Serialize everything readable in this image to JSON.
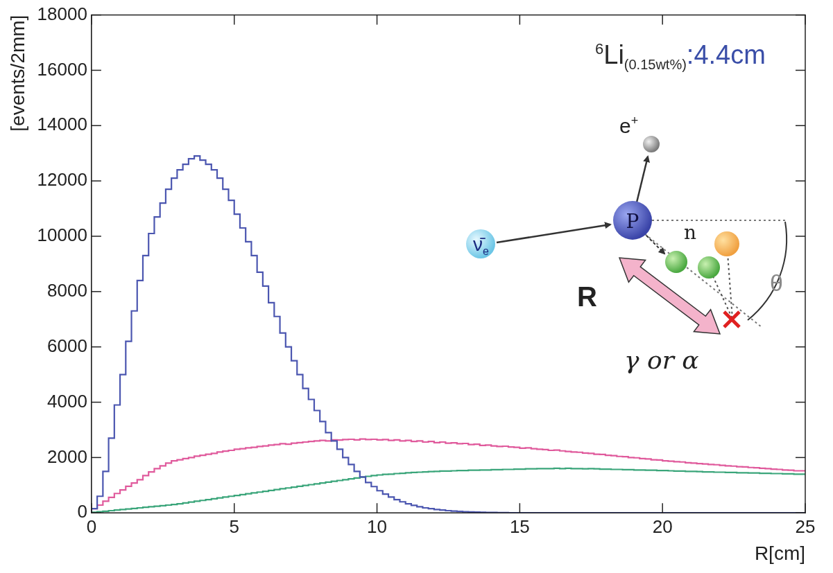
{
  "chart_data": {
    "type": "histogram",
    "x_label": "R[cm]",
    "y_label": "[events/2mm]",
    "bins": [
      0,
      0.2,
      0.4,
      0.6,
      0.8,
      1,
      1.2,
      1.4,
      1.6,
      1.8,
      2,
      2.2,
      2.4,
      2.6,
      2.8,
      3,
      3.2,
      3.4,
      3.6,
      3.8,
      4,
      4.2,
      4.4,
      4.6,
      4.8,
      5,
      5.2,
      5.4,
      5.6,
      5.8,
      6,
      6.2,
      6.4,
      6.6,
      6.8,
      7,
      7.2,
      7.4,
      7.6,
      7.8,
      8,
      8.2,
      8.4,
      8.6,
      8.8,
      9,
      9.2,
      9.4,
      9.6,
      9.8,
      10,
      10.2,
      10.4,
      10.6,
      10.8,
      11,
      11.2,
      11.4,
      11.6,
      11.8,
      12,
      12.2,
      12.4,
      12.6,
      12.8,
      13,
      13.2,
      13.4,
      13.6,
      13.8,
      14,
      14.2,
      14.4,
      14.6,
      14.8,
      15,
      15.2,
      15.4,
      15.6,
      15.8,
      16,
      16.2,
      16.4,
      16.6,
      16.8,
      17,
      17.2,
      17.4,
      17.6,
      17.8,
      18,
      18.2,
      18.4,
      18.6,
      18.8,
      19,
      19.2,
      19.4,
      19.6,
      19.8,
      20,
      20.2,
      20.4,
      20.6,
      20.8,
      21,
      21.2,
      21.4,
      21.6,
      21.8,
      22,
      22.2,
      22.4,
      22.6,
      22.8,
      23,
      23.2,
      23.4,
      23.6,
      23.8,
      24,
      24.2,
      24.4,
      24.6,
      24.8,
      25
    ],
    "series": [
      {
        "color": "#4b56b0",
        "values": [
          0,
          150,
          600,
          1500,
          2700,
          3900,
          5000,
          6200,
          7300,
          8400,
          9300,
          10100,
          10700,
          11200,
          11700,
          12100,
          12400,
          12600,
          12800,
          12900,
          12750,
          12600,
          12400,
          12100,
          11700,
          11300,
          10800,
          10300,
          9800,
          9300,
          8700,
          8200,
          7600,
          7100,
          6500,
          6000,
          5500,
          5000,
          4500,
          4100,
          3700,
          3300,
          2900,
          2600,
          2300,
          2000,
          1750,
          1500,
          1300,
          1100,
          950,
          800,
          680,
          570,
          480,
          400,
          330,
          270,
          220,
          180,
          150,
          120,
          100,
          80,
          65,
          50,
          40,
          32,
          25,
          20,
          15,
          12,
          9,
          7,
          5,
          4,
          3,
          2,
          2,
          1,
          1,
          0,
          0,
          0,
          0,
          0,
          0,
          0,
          0,
          0,
          0,
          0,
          0,
          0,
          0,
          0,
          0,
          0,
          0,
          0,
          0,
          0,
          0,
          0,
          0,
          0,
          0,
          0,
          0,
          0,
          0,
          0,
          0,
          0,
          0,
          0,
          0,
          0,
          0,
          0,
          0,
          0,
          0,
          0,
          0
        ]
      },
      {
        "color": "#e05a9c",
        "values": [
          50,
          150,
          280,
          420,
          560,
          700,
          830,
          960,
          1080,
          1200,
          1350,
          1480,
          1600,
          1700,
          1800,
          1880,
          1920,
          1960,
          2000,
          2050,
          2080,
          2120,
          2150,
          2200,
          2230,
          2260,
          2300,
          2320,
          2350,
          2370,
          2400,
          2420,
          2450,
          2470,
          2500,
          2480,
          2520,
          2540,
          2560,
          2580,
          2600,
          2620,
          2600,
          2640,
          2630,
          2650,
          2660,
          2640,
          2670,
          2650,
          2660,
          2640,
          2650,
          2620,
          2640,
          2600,
          2620,
          2580,
          2600,
          2560,
          2580,
          2540,
          2560,
          2520,
          2530,
          2500,
          2510,
          2470,
          2480,
          2440,
          2450,
          2420,
          2400,
          2410,
          2380,
          2370,
          2340,
          2350,
          2320,
          2300,
          2290,
          2260,
          2270,
          2240,
          2220,
          2200,
          2190,
          2160,
          2150,
          2120,
          2110,
          2080,
          2070,
          2040,
          2030,
          2000,
          1990,
          1960,
          1950,
          1920,
          1910,
          1880,
          1870,
          1850,
          1840,
          1810,
          1800,
          1780,
          1770,
          1750,
          1740,
          1720,
          1700,
          1690,
          1670,
          1660,
          1640,
          1630,
          1610,
          1600,
          1580,
          1570,
          1550,
          1540,
          1520
        ]
      },
      {
        "color": "#3aa57a",
        "values": [
          0,
          20,
          40,
          60,
          80,
          100,
          120,
          140,
          160,
          180,
          200,
          220,
          240,
          260,
          280,
          300,
          330,
          360,
          390,
          420,
          450,
          480,
          510,
          540,
          570,
          600,
          630,
          660,
          690,
          720,
          750,
          780,
          810,
          840,
          870,
          900,
          930,
          960,
          990,
          1020,
          1050,
          1080,
          1110,
          1140,
          1170,
          1200,
          1230,
          1260,
          1290,
          1320,
          1350,
          1370,
          1390,
          1400,
          1420,
          1430,
          1450,
          1460,
          1470,
          1480,
          1490,
          1500,
          1510,
          1510,
          1520,
          1530,
          1530,
          1540,
          1540,
          1550,
          1550,
          1560,
          1560,
          1570,
          1570,
          1580,
          1580,
          1590,
          1590,
          1600,
          1600,
          1600,
          1610,
          1600,
          1610,
          1600,
          1600,
          1590,
          1600,
          1590,
          1580,
          1580,
          1570,
          1570,
          1560,
          1560,
          1550,
          1550,
          1540,
          1540,
          1530,
          1530,
          1520,
          1510,
          1510,
          1500,
          1500,
          1490,
          1480,
          1480,
          1470,
          1470,
          1460,
          1460,
          1450,
          1450,
          1440,
          1440,
          1430,
          1430,
          1420,
          1420,
          1410,
          1410,
          1400
        ]
      }
    ],
    "xlim": [
      0,
      25
    ],
    "xticks": [
      0,
      5,
      10,
      15,
      20,
      25
    ],
    "ylim": [
      0,
      18000
    ],
    "yticks": [
      0,
      2000,
      4000,
      6000,
      8000,
      10000,
      12000,
      14000,
      16000,
      18000
    ],
    "grid": false,
    "annotation": {
      "mass_number": "6",
      "element": "Li",
      "concentration": "(0.15wt%)",
      "separator": ":",
      "value": "4.4cm"
    },
    "diagram": {
      "antineutrino": "ν̄",
      "antineutrino_sub": "e",
      "positron": "e",
      "positron_charge": "+",
      "proton": "P",
      "neutron": "n",
      "distance": "R",
      "angle": "θ",
      "capture": "γ or α"
    }
  }
}
